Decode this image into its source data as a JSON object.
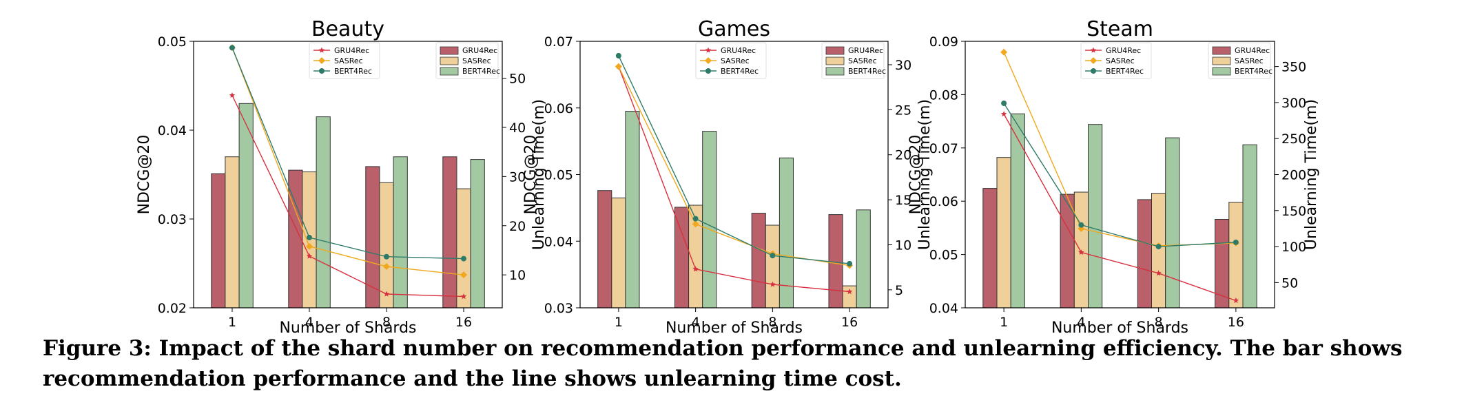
{
  "caption": "Figure 3: Impact of the shard number on recommendation performance and unlearning efficiency. The bar shows recommendation performance and the line shows unlearning time cost.",
  "colors": {
    "GRU4Rec_bar": "#b9606a",
    "SASRec_bar": "#efd09a",
    "BERT4Rec_bar": "#a3c9a3",
    "GRU4Rec_line": "#d7303f",
    "SASRec_line": "#f0a81e",
    "BERT4Rec_line": "#2e7b6a"
  },
  "chart_data": [
    {
      "type": "bar",
      "title": "Beauty",
      "xlabel": "Number of Shards",
      "ylabel": "NDCG@20",
      "y2label": "Unlearning Time(m)",
      "categories": [
        "1",
        "4",
        "8",
        "16"
      ],
      "ylim": [
        0.02,
        0.05
      ],
      "yticks": [
        "0.02",
        "0.03",
        "0.04",
        "0.05"
      ],
      "y2lim": [
        3.3,
        57.5
      ],
      "y2ticks": [
        "10",
        "20",
        "30",
        "40",
        "50"
      ],
      "series": [
        {
          "name": "GRU4Rec",
          "values": [
            0.0351,
            0.0355,
            0.0359,
            0.037
          ]
        },
        {
          "name": "SASRec",
          "values": [
            0.037,
            0.0353,
            0.0341,
            0.0334
          ]
        },
        {
          "name": "BERT4Rec",
          "values": [
            0.043,
            0.0415,
            0.037,
            0.0367
          ]
        }
      ],
      "lines": [
        {
          "name": "GRU4Rec",
          "values": [
            46.5,
            13.8,
            6.1,
            5.6
          ]
        },
        {
          "name": "SASRec",
          "values": [
            56.2,
            15.8,
            11.7,
            10.0
          ]
        },
        {
          "name": "BERT4Rec",
          "values": [
            56.2,
            17.6,
            13.7,
            13.3
          ]
        }
      ],
      "legend_bars": [
        "GRU4Rec",
        "SASRec",
        "BERT4Rec"
      ],
      "legend_lines": [
        "GRU4Rec",
        "SASRec",
        "BERT4Rec"
      ]
    },
    {
      "type": "bar",
      "title": "Games",
      "xlabel": "Number of Shards",
      "ylabel": "NDCG@20",
      "y2label": "Unlearning Time(m)",
      "categories": [
        "1",
        "4",
        "8",
        "16"
      ],
      "ylim": [
        0.03,
        0.07
      ],
      "yticks": [
        "0.03",
        "0.04",
        "0.05",
        "0.06",
        "0.07"
      ],
      "y2lim": [
        3.0,
        32.6
      ],
      "y2ticks": [
        "5",
        "10",
        "15",
        "20",
        "25",
        "30"
      ],
      "series": [
        {
          "name": "GRU4Rec",
          "values": [
            0.0476,
            0.0451,
            0.0442,
            0.044
          ]
        },
        {
          "name": "SASRec",
          "values": [
            0.0465,
            0.0454,
            0.0424,
            0.0333
          ]
        },
        {
          "name": "BERT4Rec",
          "values": [
            0.0595,
            0.0565,
            0.0525,
            0.0447
          ]
        }
      ],
      "lines": [
        {
          "name": "GRU4Rec",
          "values": [
            29.8,
            7.3,
            5.6,
            4.8
          ]
        },
        {
          "name": "SASRec",
          "values": [
            29.8,
            12.3,
            9.0,
            7.7
          ]
        },
        {
          "name": "BERT4Rec",
          "values": [
            31.0,
            12.9,
            8.8,
            7.9
          ]
        }
      ],
      "legend_bars": [
        "GRU4Rec",
        "SASRec",
        "BERT4Rec"
      ],
      "legend_lines": [
        "GRU4Rec",
        "SASRec",
        "BERT4Rec"
      ]
    },
    {
      "type": "bar",
      "title": "Steam",
      "xlabel": "Number of Shards",
      "ylabel": "NDCG@20",
      "y2label": "Unlearning Time(m)",
      "categories": [
        "1",
        "4",
        "8",
        "16"
      ],
      "ylim": [
        0.04,
        0.09
      ],
      "yticks": [
        "0.04",
        "0.05",
        "0.06",
        "0.07",
        "0.08",
        "0.09"
      ],
      "y2lim": [
        15,
        385
      ],
      "y2ticks": [
        "50",
        "100",
        "150",
        "200",
        "250",
        "300",
        "350"
      ],
      "series": [
        {
          "name": "GRU4Rec",
          "values": [
            0.0624,
            0.0613,
            0.0603,
            0.0566
          ]
        },
        {
          "name": "SASRec",
          "values": [
            0.0682,
            0.0617,
            0.0615,
            0.0598
          ]
        },
        {
          "name": "BERT4Rec",
          "values": [
            0.0764,
            0.0744,
            0.0719,
            0.0706
          ]
        }
      ],
      "lines": [
        {
          "name": "GRU4Rec",
          "values": [
            284,
            92,
            63,
            25
          ]
        },
        {
          "name": "SASRec",
          "values": [
            370,
            125,
            101,
            105
          ]
        },
        {
          "name": "BERT4Rec",
          "values": [
            299,
            130,
            100,
            106
          ]
        }
      ],
      "legend_bars": [
        "GRU4Rec",
        "SASRec",
        "BERT4Rec"
      ],
      "legend_lines": [
        "GRU4Rec",
        "SASRec",
        "BERT4Rec"
      ]
    }
  ]
}
